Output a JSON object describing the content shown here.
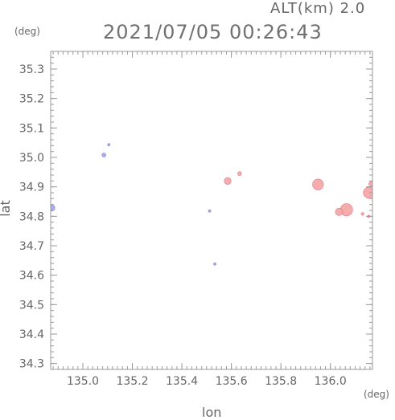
{
  "header": {
    "altitude": "ALT(km) 2.0",
    "timestamp": "2021/07/05 00:26:43"
  },
  "chart_data": {
    "type": "scatter",
    "xlabel": "lon",
    "ylabel": "lat",
    "x_unit": "(deg)",
    "y_unit": "(deg)",
    "xlim": [
      134.87,
      136.17
    ],
    "ylim": [
      34.28,
      35.36
    ],
    "xticks": [
      "135.0",
      "135.2",
      "135.4",
      "135.6",
      "135.8",
      "136.0"
    ],
    "xtick_values": [
      135.0,
      135.2,
      135.4,
      135.6,
      135.8,
      136.0
    ],
    "yticks": [
      "34.3",
      "34.4",
      "34.5",
      "34.6",
      "34.7",
      "34.8",
      "34.9",
      "35.0",
      "35.1",
      "35.2",
      "35.3"
    ],
    "ytick_values": [
      34.3,
      34.4,
      34.5,
      34.6,
      34.7,
      34.8,
      34.9,
      35.0,
      35.1,
      35.2,
      35.3
    ],
    "colors": {
      "pink": "#f5a8a8",
      "blue": "#a8a8f0",
      "axis": "#9a9a9a"
    },
    "echoes": [
      {
        "lon": 134.875,
        "lat": 34.828,
        "r": 0.012,
        "color": "blue"
      },
      {
        "lon": 135.085,
        "lat": 35.008,
        "r": 0.008,
        "color": "blue"
      },
      {
        "lon": 135.105,
        "lat": 35.043,
        "r": 0.004,
        "color": "blue"
      },
      {
        "lon": 135.512,
        "lat": 34.818,
        "r": 0.003,
        "color": "blue"
      },
      {
        "lon": 135.533,
        "lat": 34.638,
        "r": 0.003,
        "color": "blue"
      },
      {
        "lon": 135.585,
        "lat": 34.92,
        "r": 0.014,
        "color": "pink"
      },
      {
        "lon": 135.633,
        "lat": 34.945,
        "r": 0.008,
        "color": "pink"
      },
      {
        "lon": 135.95,
        "lat": 34.908,
        "r": 0.022,
        "color": "pink"
      },
      {
        "lon": 136.065,
        "lat": 34.822,
        "r": 0.025,
        "color": "pink"
      },
      {
        "lon": 136.035,
        "lat": 34.815,
        "r": 0.015,
        "color": "pink"
      },
      {
        "lon": 136.155,
        "lat": 34.88,
        "r": 0.022,
        "color": "pink"
      },
      {
        "lon": 136.165,
        "lat": 34.91,
        "r": 0.01,
        "color": "pink"
      },
      {
        "lon": 136.13,
        "lat": 34.808,
        "r": 0.006,
        "color": "pink"
      },
      {
        "lon": 136.155,
        "lat": 34.8,
        "r": 0.005,
        "color": "pink"
      }
    ]
  }
}
